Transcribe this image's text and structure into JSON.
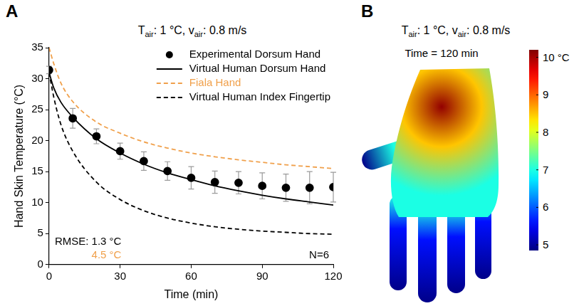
{
  "chart_data": [
    {
      "type": "line",
      "panel": "A",
      "title": "Tair: 1 °C, vair: 0.8 m/s",
      "x_label": "Time (min)",
      "y_label": "Hand Skin Temperature (°C)",
      "x": [
        0,
        2,
        5,
        10,
        20,
        30,
        40,
        50,
        60,
        70,
        80,
        90,
        100,
        110,
        120
      ],
      "series": [
        {
          "name": "Experimental Dorsum Hand",
          "color": "#000000",
          "marker": "circle",
          "line_style": "none",
          "values": [
            31.4,
            null,
            null,
            23.6,
            20.7,
            18.3,
            16.7,
            15.1,
            14.0,
            13.3,
            13.2,
            12.7,
            12.4,
            12.4,
            12.5
          ],
          "errors": [
            0.6,
            null,
            null,
            1.6,
            1.2,
            1.3,
            1.5,
            1.5,
            1.8,
            1.8,
            1.8,
            2.1,
            2.2,
            2.6,
            2.4
          ]
        },
        {
          "name": "Virtual Human Dorsum Hand",
          "color": "#000000",
          "marker": "none",
          "line_style": "solid",
          "values": [
            31.0,
            28.5,
            26.2,
            23.8,
            20.3,
            18.0,
            16.2,
            14.8,
            13.7,
            12.7,
            11.9,
            11.2,
            10.6,
            10.1,
            9.6
          ]
        },
        {
          "name": "Fiala Hand",
          "color": "#f0a04b",
          "marker": "none",
          "line_style": "dashed",
          "values": [
            35.0,
            32.4,
            29.3,
            26.3,
            23.0,
            21.2,
            19.8,
            18.8,
            18.0,
            17.4,
            16.9,
            16.5,
            16.1,
            15.8,
            15.5
          ]
        },
        {
          "name": "Virtual Human Index Fingertip",
          "color": "#000000",
          "marker": "none",
          "line_style": "dashed",
          "values": [
            31.0,
            27.0,
            22.6,
            18.3,
            13.3,
            10.5,
            8.7,
            7.5,
            6.7,
            6.1,
            5.7,
            5.4,
            5.2,
            5.0,
            4.9
          ]
        }
      ],
      "xlim": [
        0,
        120
      ],
      "xticks": [
        0,
        30,
        60,
        90,
        120
      ],
      "ylim": [
        0,
        35
      ],
      "yticks": [
        0,
        5,
        10,
        15,
        20,
        25,
        30,
        35
      ],
      "grid": false,
      "legend": "upper right",
      "annotations": [
        {
          "text": "RMSE: 1.3 °C",
          "color": "#000000"
        },
        {
          "text": "4.5 °C",
          "color": "#f0a04b"
        },
        {
          "text": "N=6",
          "color": "#000000"
        }
      ]
    },
    {
      "type": "heatmap",
      "panel": "B",
      "title": "Tair: 1 °C, vair: 0.8 m/s",
      "subtitle": "Time = 120 min",
      "colorbar": {
        "range": [
          4.85,
          10.2
        ],
        "ticks": [
          5,
          6,
          7,
          8,
          9,
          {
            "value": 10,
            "label": "10 °C"
          }
        ]
      },
      "surface": {
        "fingertips": 4.9,
        "fingers": 5.6,
        "palm_edge": 7.0,
        "palm": 8.5,
        "palm_center": 10.1
      }
    }
  ]
}
